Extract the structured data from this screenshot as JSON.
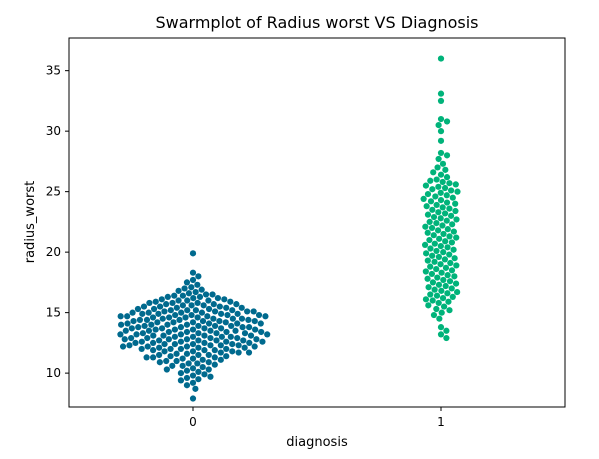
{
  "chart_data": {
    "type": "scatter",
    "subtype": "swarm",
    "title": "Swarmplot of Radius worst VS Diagnosis",
    "xlabel": "diagnosis",
    "ylabel": "radius_worst",
    "categories": [
      "0",
      "1"
    ],
    "ylim": [
      7.2,
      37.7
    ],
    "yticks": [
      10,
      15,
      20,
      25,
      30,
      35
    ],
    "grid": false,
    "legend": "none",
    "series": [
      {
        "category": "0",
        "color": "#006a8e",
        "values": [
          7.9,
          8.7,
          9.0,
          9.2,
          9.4,
          9.5,
          9.6,
          9.7,
          9.8,
          9.9,
          10.0,
          10.1,
          10.2,
          10.3,
          10.3,
          10.4,
          10.5,
          10.6,
          10.6,
          10.7,
          10.8,
          10.8,
          10.9,
          10.9,
          11.0,
          11.0,
          11.1,
          11.1,
          11.2,
          11.2,
          11.3,
          11.3,
          11.3,
          11.4,
          11.4,
          11.5,
          11.5,
          11.5,
          11.6,
          11.6,
          11.7,
          11.7,
          11.7,
          11.8,
          11.8,
          11.8,
          11.9,
          11.9,
          11.9,
          12.0,
          12.0,
          12.0,
          12.0,
          12.1,
          12.1,
          12.1,
          12.2,
          12.2,
          12.2,
          12.2,
          12.3,
          12.3,
          12.3,
          12.3,
          12.4,
          12.4,
          12.4,
          12.4,
          12.5,
          12.5,
          12.5,
          12.5,
          12.6,
          12.6,
          12.6,
          12.6,
          12.7,
          12.7,
          12.7,
          12.7,
          12.8,
          12.8,
          12.8,
          12.8,
          12.9,
          12.9,
          12.9,
          12.9,
          13.0,
          13.0,
          13.0,
          13.0,
          13.1,
          13.1,
          13.1,
          13.1,
          13.2,
          13.2,
          13.2,
          13.2,
          13.3,
          13.3,
          13.3,
          13.3,
          13.4,
          13.4,
          13.4,
          13.4,
          13.5,
          13.5,
          13.5,
          13.5,
          13.6,
          13.6,
          13.6,
          13.6,
          13.7,
          13.7,
          13.7,
          13.7,
          13.8,
          13.8,
          13.8,
          13.8,
          13.9,
          13.9,
          13.9,
          13.9,
          14.0,
          14.0,
          14.0,
          14.0,
          14.1,
          14.1,
          14.1,
          14.1,
          14.2,
          14.2,
          14.2,
          14.2,
          14.3,
          14.3,
          14.3,
          14.3,
          14.4,
          14.4,
          14.4,
          14.4,
          14.5,
          14.5,
          14.5,
          14.5,
          14.6,
          14.6,
          14.6,
          14.6,
          14.7,
          14.7,
          14.7,
          14.7,
          14.8,
          14.8,
          14.8,
          14.8,
          14.9,
          14.9,
          14.9,
          14.9,
          15.0,
          15.0,
          15.0,
          15.0,
          15.1,
          15.1,
          15.1,
          15.1,
          15.2,
          15.2,
          15.2,
          15.2,
          15.3,
          15.3,
          15.3,
          15.4,
          15.4,
          15.4,
          15.5,
          15.5,
          15.5,
          15.6,
          15.6,
          15.6,
          15.7,
          15.7,
          15.7,
          15.8,
          15.8,
          15.8,
          15.9,
          15.9,
          16.0,
          16.0,
          16.0,
          16.1,
          16.1,
          16.2,
          16.2,
          16.3,
          16.3,
          16.4,
          16.4,
          16.5,
          16.5,
          16.6,
          16.7,
          16.8,
          16.9,
          17.0,
          17.1,
          17.3,
          17.5,
          17.7,
          18.0,
          18.3,
          19.9
        ]
      },
      {
        "category": "1",
        "color": "#00b37a",
        "values": [
          12.9,
          13.2,
          13.5,
          13.8,
          14.5,
          14.8,
          15.0,
          15.2,
          15.3,
          15.5,
          15.6,
          15.8,
          15.9,
          16.0,
          16.1,
          16.2,
          16.3,
          16.4,
          16.5,
          16.6,
          16.7,
          16.8,
          16.9,
          17.0,
          17.1,
          17.2,
          17.3,
          17.4,
          17.5,
          17.6,
          17.7,
          17.8,
          17.9,
          18.0,
          18.1,
          18.2,
          18.3,
          18.4,
          18.5,
          18.6,
          18.7,
          18.8,
          18.9,
          19.0,
          19.1,
          19.2,
          19.3,
          19.4,
          19.5,
          19.6,
          19.7,
          19.8,
          19.9,
          20.0,
          20.1,
          20.2,
          20.3,
          20.4,
          20.5,
          20.6,
          20.7,
          20.8,
          20.9,
          21.0,
          21.1,
          21.2,
          21.3,
          21.4,
          21.5,
          21.6,
          21.7,
          21.8,
          21.9,
          22.0,
          22.1,
          22.2,
          22.3,
          22.4,
          22.5,
          22.6,
          22.7,
          22.8,
          22.9,
          23.0,
          23.1,
          23.2,
          23.3,
          23.4,
          23.5,
          23.6,
          23.7,
          23.8,
          23.9,
          24.0,
          24.1,
          24.2,
          24.3,
          24.4,
          24.5,
          24.6,
          24.7,
          24.8,
          24.9,
          25.0,
          25.1,
          25.2,
          25.3,
          25.4,
          25.5,
          25.6,
          25.7,
          25.8,
          25.9,
          26.0,
          26.2,
          26.4,
          26.6,
          26.8,
          27.0,
          27.3,
          27.7,
          28.0,
          28.2,
          29.2,
          30.0,
          30.5,
          30.8,
          31.0,
          32.5,
          33.1,
          36.0
        ]
      }
    ]
  }
}
